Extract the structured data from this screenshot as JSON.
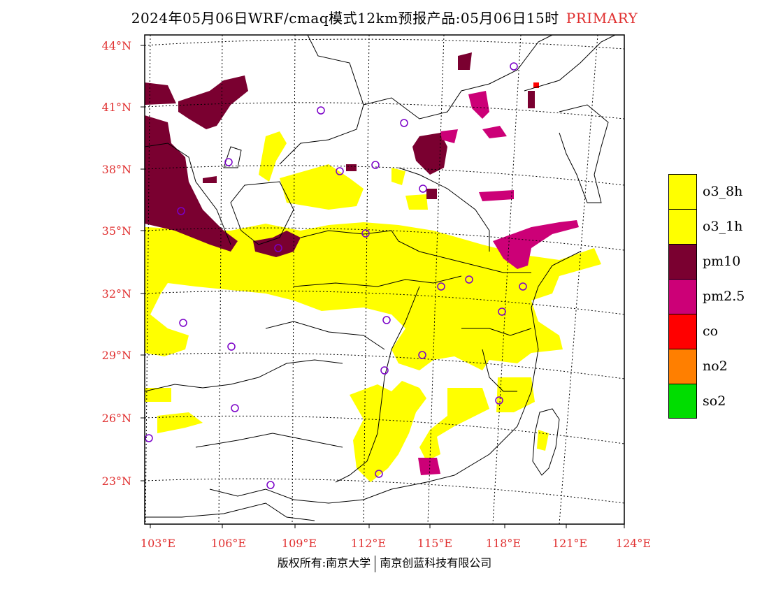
{
  "title": {
    "text": "2024年05月06日WRF/cmaq模式12km预报产品:05月06日15时",
    "tag": "PRIMARY"
  },
  "colors": {
    "o3_8h": "#ffff00",
    "o3_1h": "#ffff00",
    "pm10": "#7a0030",
    "pm2_5": "#cc0077",
    "co": "#ff0000",
    "no2": "#ff7f00",
    "so2": "#00dd00",
    "axis_label": "#e03030",
    "station": "#7a00c8"
  },
  "latitude_labels": [
    "44°N",
    "41°N",
    "38°N",
    "35°N",
    "32°N",
    "29°N",
    "26°N",
    "23°N"
  ],
  "longitude_labels": [
    "103°E",
    "106°E",
    "109°E",
    "112°E",
    "115°E",
    "118°E",
    "121°E",
    "124°E"
  ],
  "legend": [
    {
      "label": "o3_8h",
      "color": "#ffff00"
    },
    {
      "label": "o3_1h",
      "color": "#ffff00"
    },
    {
      "label": "pm10",
      "color": "#7a0030"
    },
    {
      "label": "pm2.5",
      "color": "#cc0077"
    },
    {
      "label": "co",
      "color": "#ff0000"
    },
    {
      "label": "no2",
      "color": "#ff7f00"
    },
    {
      "label": "so2",
      "color": "#00dd00"
    }
  ],
  "footer": {
    "left": "版权所有:南京大学",
    "right": "南京创蓝科技有限公司"
  }
}
